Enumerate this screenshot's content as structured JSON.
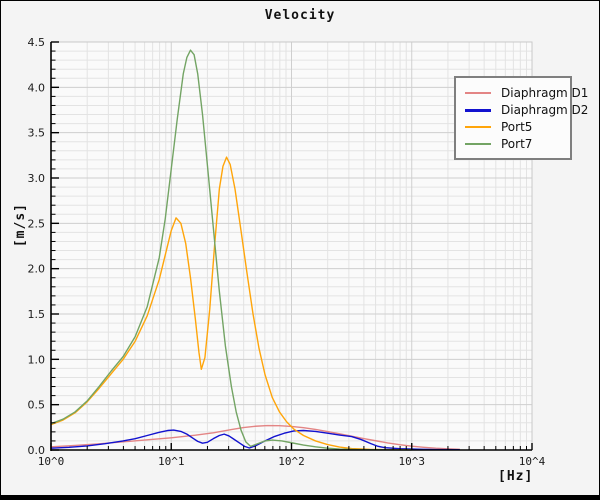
{
  "figure": {
    "title": "Velocity",
    "x_axis": {
      "unit_label": "[Hz]",
      "tick_labels": [
        "10^0",
        "10^1",
        "10^2",
        "10^3",
        "10^4"
      ]
    },
    "y_axis": {
      "unit_label": "[m/s]",
      "tick_labels": [
        "0.0",
        "0.5",
        "1.0",
        "1.5",
        "2.0",
        "2.5",
        "3.0",
        "3.5",
        "4.0",
        "4.5"
      ]
    }
  },
  "chart_data": {
    "type": "line",
    "title": "Velocity",
    "xlabel": "[Hz]",
    "ylabel": "[m/s]",
    "x_scale": "log10",
    "xlim": [
      1,
      10000
    ],
    "ylim": [
      0,
      4.5
    ],
    "y_major_step": 0.5,
    "y_minor_step": 0.1,
    "grid": "major+minor",
    "legend_position": "top-right",
    "series": [
      {
        "name": "Diaphragm D1",
        "color": "#e38585",
        "points_log10hz_mps": [
          [
            0.0,
            0.035
          ],
          [
            0.2,
            0.05
          ],
          [
            0.4,
            0.068
          ],
          [
            0.6,
            0.09
          ],
          [
            0.8,
            0.112
          ],
          [
            1.0,
            0.135
          ],
          [
            1.2,
            0.163
          ],
          [
            1.35,
            0.19
          ],
          [
            1.5,
            0.225
          ],
          [
            1.6,
            0.248
          ],
          [
            1.7,
            0.262
          ],
          [
            1.8,
            0.27
          ],
          [
            1.9,
            0.268
          ],
          [
            2.0,
            0.26
          ],
          [
            2.1,
            0.246
          ],
          [
            2.2,
            0.227
          ],
          [
            2.3,
            0.203
          ],
          [
            2.4,
            0.178
          ],
          [
            2.5,
            0.152
          ],
          [
            2.6,
            0.126
          ],
          [
            2.7,
            0.102
          ],
          [
            2.8,
            0.078
          ],
          [
            2.9,
            0.058
          ],
          [
            3.0,
            0.042
          ],
          [
            3.1,
            0.03
          ],
          [
            3.2,
            0.02
          ],
          [
            3.3,
            0.013
          ],
          [
            3.4,
            0.008
          ]
        ]
      },
      {
        "name": "Diaphragm D2",
        "color": "#1212cf",
        "points_log10hz_mps": [
          [
            0.0,
            0.02
          ],
          [
            0.15,
            0.03
          ],
          [
            0.3,
            0.045
          ],
          [
            0.45,
            0.07
          ],
          [
            0.6,
            0.1
          ],
          [
            0.7,
            0.125
          ],
          [
            0.8,
            0.16
          ],
          [
            0.9,
            0.195
          ],
          [
            0.97,
            0.215
          ],
          [
            1.02,
            0.22
          ],
          [
            1.08,
            0.205
          ],
          [
            1.13,
            0.175
          ],
          [
            1.18,
            0.13
          ],
          [
            1.22,
            0.095
          ],
          [
            1.26,
            0.075
          ],
          [
            1.3,
            0.085
          ],
          [
            1.35,
            0.125
          ],
          [
            1.4,
            0.16
          ],
          [
            1.44,
            0.175
          ],
          [
            1.48,
            0.155
          ],
          [
            1.52,
            0.12
          ],
          [
            1.57,
            0.075
          ],
          [
            1.61,
            0.04
          ],
          [
            1.65,
            0.022
          ],
          [
            1.7,
            0.045
          ],
          [
            1.78,
            0.1
          ],
          [
            1.86,
            0.15
          ],
          [
            1.94,
            0.185
          ],
          [
            2.02,
            0.21
          ],
          [
            2.1,
            0.215
          ],
          [
            2.2,
            0.205
          ],
          [
            2.3,
            0.185
          ],
          [
            2.4,
            0.165
          ],
          [
            2.5,
            0.148
          ],
          [
            2.58,
            0.115
          ],
          [
            2.66,
            0.07
          ],
          [
            2.72,
            0.04
          ],
          [
            2.78,
            0.025
          ],
          [
            2.9,
            0.015
          ],
          [
            3.05,
            0.009
          ],
          [
            3.2,
            0.005
          ],
          [
            3.4,
            0.003
          ]
        ]
      },
      {
        "name": "Port5",
        "color": "#ffa50a",
        "points_log10hz_mps": [
          [
            0.0,
            0.28
          ],
          [
            0.1,
            0.33
          ],
          [
            0.2,
            0.41
          ],
          [
            0.3,
            0.53
          ],
          [
            0.4,
            0.68
          ],
          [
            0.5,
            0.84
          ],
          [
            0.6,
            1.0
          ],
          [
            0.7,
            1.2
          ],
          [
            0.8,
            1.48
          ],
          [
            0.9,
            1.88
          ],
          [
            0.95,
            2.15
          ],
          [
            1.0,
            2.42
          ],
          [
            1.04,
            2.56
          ],
          [
            1.08,
            2.5
          ],
          [
            1.12,
            2.28
          ],
          [
            1.16,
            1.9
          ],
          [
            1.2,
            1.45
          ],
          [
            1.23,
            1.08
          ],
          [
            1.25,
            0.89
          ],
          [
            1.28,
            1.02
          ],
          [
            1.32,
            1.55
          ],
          [
            1.36,
            2.25
          ],
          [
            1.4,
            2.88
          ],
          [
            1.43,
            3.13
          ],
          [
            1.46,
            3.23
          ],
          [
            1.49,
            3.15
          ],
          [
            1.53,
            2.88
          ],
          [
            1.58,
            2.42
          ],
          [
            1.63,
            1.95
          ],
          [
            1.68,
            1.5
          ],
          [
            1.73,
            1.12
          ],
          [
            1.78,
            0.83
          ],
          [
            1.84,
            0.58
          ],
          [
            1.9,
            0.42
          ],
          [
            1.96,
            0.31
          ],
          [
            2.02,
            0.23
          ],
          [
            2.1,
            0.16
          ],
          [
            2.2,
            0.1
          ],
          [
            2.3,
            0.06
          ],
          [
            2.4,
            0.032
          ],
          [
            2.5,
            0.016
          ],
          [
            2.65,
            0.007
          ],
          [
            2.85,
            0.003
          ],
          [
            3.0,
            0.002
          ]
        ]
      },
      {
        "name": "Port7",
        "color": "#73a464",
        "points_log10hz_mps": [
          [
            0.0,
            0.29
          ],
          [
            0.1,
            0.34
          ],
          [
            0.2,
            0.42
          ],
          [
            0.3,
            0.54
          ],
          [
            0.4,
            0.7
          ],
          [
            0.5,
            0.87
          ],
          [
            0.6,
            1.03
          ],
          [
            0.7,
            1.25
          ],
          [
            0.8,
            1.58
          ],
          [
            0.9,
            2.12
          ],
          [
            0.95,
            2.55
          ],
          [
            1.0,
            3.1
          ],
          [
            1.05,
            3.65
          ],
          [
            1.1,
            4.15
          ],
          [
            1.13,
            4.33
          ],
          [
            1.16,
            4.41
          ],
          [
            1.19,
            4.36
          ],
          [
            1.22,
            4.15
          ],
          [
            1.26,
            3.7
          ],
          [
            1.3,
            3.15
          ],
          [
            1.35,
            2.45
          ],
          [
            1.4,
            1.75
          ],
          [
            1.45,
            1.15
          ],
          [
            1.5,
            0.7
          ],
          [
            1.54,
            0.42
          ],
          [
            1.58,
            0.22
          ],
          [
            1.62,
            0.09
          ],
          [
            1.66,
            0.04
          ],
          [
            1.72,
            0.07
          ],
          [
            1.78,
            0.1
          ],
          [
            1.84,
            0.11
          ],
          [
            1.92,
            0.1
          ],
          [
            2.0,
            0.08
          ],
          [
            2.1,
            0.055
          ],
          [
            2.2,
            0.035
          ],
          [
            2.3,
            0.02
          ],
          [
            2.4,
            0.01
          ],
          [
            2.55,
            0.005
          ],
          [
            2.8,
            0.002
          ],
          [
            3.0,
            0.001
          ]
        ]
      }
    ]
  },
  "style": {
    "plot_bg": "#fafafa",
    "outer_bg": "#f4f4f4",
    "grid_minor": "#e3e3e3",
    "grid_major": "#cfcfcf",
    "frame": "#c9c9c9",
    "axis": "#000000",
    "tick_text": "#1a1a1a"
  }
}
